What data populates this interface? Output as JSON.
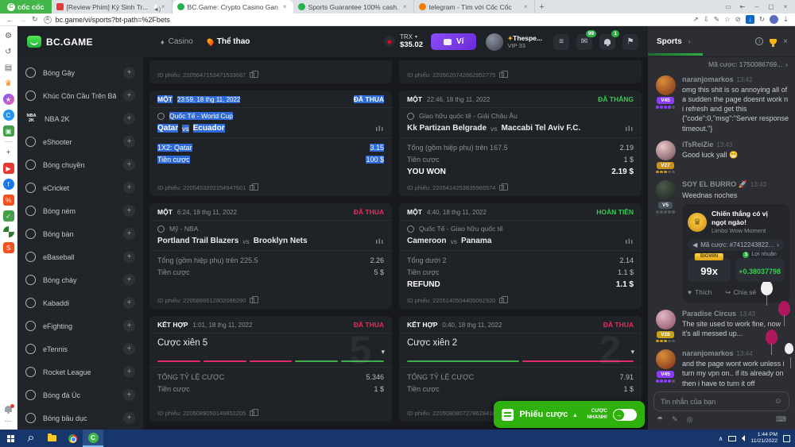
{
  "browser": {
    "brand": "cốc cốc",
    "tabs": [
      {
        "title": "[Review Phim] Ký Sinh Tr...",
        "favicon": "youtube",
        "audio": true,
        "active": false
      },
      {
        "title": "BC.Game: Crypto Casino Gan...",
        "favicon": "bcgame",
        "audio": false,
        "active": true
      },
      {
        "title": "Sports Guarantee 100% cash...",
        "favicon": "bcgame",
        "audio": false,
        "active": false
      },
      {
        "title": "telegram - Tìm với Cốc Cốc",
        "favicon": "coccoc",
        "audio": false,
        "active": false
      }
    ],
    "url": "bc.game/vi/sports?bt-path=%2Fbets"
  },
  "header": {
    "logo": "BC.GAME",
    "casino": "Casino",
    "sports": "Thể thao",
    "currency": "TRX",
    "balance": "$35.02",
    "wallet": "Ví",
    "username": "Thespe...",
    "vip": "VIP 33",
    "mail_badge": "99",
    "bell_badge": "1"
  },
  "strip": {
    "icons": [
      {
        "name": "settings-icon",
        "type": "glyph",
        "glyph": "⚙",
        "fg": "#5f6368"
      },
      {
        "name": "history-icon",
        "type": "glyph",
        "glyph": "↺",
        "fg": "#5f6368"
      },
      {
        "name": "reading-list-icon",
        "type": "glyph",
        "glyph": "▤",
        "fg": "#5f6368"
      },
      {
        "name": "crown-rewards-icon",
        "type": "glyph",
        "glyph": "♛",
        "fg": "#f57c00"
      },
      {
        "name": "messenger-icon",
        "type": "circle",
        "bg": "linear-gradient(135deg,#6a5cff,#ff5ca8)",
        "glyph": "★",
        "fg": "#ffffff"
      },
      {
        "name": "coccoc-news-icon",
        "type": "circle",
        "bg": "#2196f3",
        "glyph": "C",
        "fg": "#ffffff"
      },
      {
        "name": "gamepad-icon",
        "type": "tile",
        "bg": "#43a047",
        "glyph": "▣",
        "fg": "#ffffff"
      },
      {
        "name": "strip-divider",
        "type": "divider"
      },
      {
        "name": "add-shortcut-icon",
        "type": "glyph",
        "glyph": "+",
        "fg": "#5f6368"
      },
      {
        "name": "youtube-icon",
        "type": "tile",
        "bg": "#e53935",
        "glyph": "▶",
        "fg": "#ffffff"
      },
      {
        "name": "facebook-icon",
        "type": "circle",
        "bg": "#1877f2",
        "glyph": "f",
        "fg": "#ffffff"
      },
      {
        "name": "sale-icon",
        "type": "tile",
        "bg": "#f4511e",
        "glyph": "%",
        "fg": "#ffffff"
      },
      {
        "name": "shield-icon",
        "type": "tile",
        "bg": "#43a047",
        "glyph": "✓",
        "fg": "#ffffff"
      },
      {
        "name": "sports-ball-icon",
        "type": "circle",
        "bg": "conic-gradient(#ffffff 0 25%,#2e7d32 0 50%,#ffffff 0 75%,#2e7d32 0)",
        "glyph": "",
        "fg": "#ffffff"
      },
      {
        "name": "shopee-icon",
        "type": "tile",
        "bg": "#f4511e",
        "glyph": "S",
        "fg": "#ffffff"
      }
    ]
  },
  "sidebar": {
    "items": [
      {
        "label": "Bóng Gậy",
        "icon": "cricket-icon"
      },
      {
        "label": "Khúc Côn Cầu Trên Băng",
        "icon": "ice-hockey-icon"
      },
      {
        "label": "NBA 2K",
        "icon": "nba2k-icon"
      },
      {
        "label": "eShooter",
        "icon": "eshooter-icon"
      },
      {
        "label": "Bóng chuyền",
        "icon": "volleyball-icon"
      },
      {
        "label": "eCricket",
        "icon": "ecricket-icon"
      },
      {
        "label": "Bóng ném",
        "icon": "handball-icon"
      },
      {
        "label": "Bóng bàn",
        "icon": "table-tennis-icon"
      },
      {
        "label": "eBaseball",
        "icon": "ebaseball-icon"
      },
      {
        "label": "Bóng chày",
        "icon": "baseball-icon"
      },
      {
        "label": "Kabaddi",
        "icon": "kabaddi-icon"
      },
      {
        "label": "eFighting",
        "icon": "efighting-icon"
      },
      {
        "label": "eTennis",
        "icon": "etennis-icon"
      },
      {
        "label": "Rocket League",
        "icon": "rocket-league-icon"
      },
      {
        "label": "Bóng đá Úc",
        "icon": "aussie-rules-icon"
      },
      {
        "label": "Bóng bầu dục",
        "icon": "rugby-icon"
      }
    ]
  },
  "bets": {
    "partial": [
      {
        "id": "ID phiếu: 2205647153471533687"
      },
      {
        "id": "ID phiếu: 2205620742862952775"
      }
    ],
    "cards": [
      {
        "type": "MỘT",
        "time": "23:59, 18 thg 11, 2022",
        "status": "ĐÃ THUA",
        "result_type": "lose",
        "league": "Quốc Tế - World Cup",
        "team1": "Qatar",
        "team2": "Ecuador",
        "rows": [
          [
            "1X2: Qatar",
            "3.15"
          ],
          [
            "Tiền cược",
            "100 $"
          ]
        ],
        "id": "ID phiếu: 2205453202154947601",
        "selected": true
      },
      {
        "type": "MỘT",
        "time": "22:46, 18 thg 11, 2022",
        "status": "ĐÃ THẮNG",
        "result_type": "win",
        "league": "Giao hữu quốc tế - Giải Châu Âu",
        "team1": "Kk Partizan Belgrade",
        "team2": "Maccabi Tel Aviv F.C.",
        "rows": [
          [
            "Tổng (gồm hiệp phụ) trên 167.5",
            "2.19"
          ],
          [
            "Tiền cược",
            "1 $"
          ]
        ],
        "result": [
          "YOU WON",
          "2.19 $"
        ],
        "id": "ID phiếu: 2205414253835960574",
        "selected": false
      },
      {
        "type": "MỘT",
        "time": "6:24, 18 thg 11, 2022",
        "status": "ĐÃ THUA",
        "result_type": "lose",
        "league": "Mỹ - NBA",
        "team1": "Portland Trail Blazers",
        "team2": "Brooklyn Nets",
        "rows": [
          [
            "Tổng (gồm hiệp phụ) trên 225.5",
            "2.26"
          ],
          [
            "Tiền cược",
            "5 $"
          ]
        ],
        "id": "ID phiếu: 2205866512802086290",
        "selected": false
      },
      {
        "type": "MỘT",
        "time": "4:40, 18 thg 11, 2022",
        "status": "HOÀN TIỀN",
        "result_type": "refund",
        "league": "Quốc Tế - Giao hữu quốc tế",
        "team1": "Cameroon",
        "team2": "Panama",
        "rows": [
          [
            "Tổng dưới 2",
            "2.14"
          ],
          [
            "Tiền cược",
            "1.1 $"
          ]
        ],
        "result": [
          "REFUND",
          "1.1 $"
        ],
        "id": "ID phiếu: 2205140504405062920",
        "selected": false
      },
      {
        "type": "KẾT HỢP",
        "time": "1:01, 18 thg 11, 2022",
        "status": "ĐÃ THUA",
        "result_type": "lose",
        "parlay": {
          "title": "Cược xiên 5",
          "count": "5",
          "legs": [
            "lose",
            "lose",
            "lose",
            "win",
            "win"
          ]
        },
        "rows": [
          [
            "TỔNG TỶ LỆ CƯỢC",
            "5.346"
          ],
          [
            "Tiền cược",
            "1 $"
          ]
        ],
        "id": "ID phiếu: 2205089050149852205",
        "selected": false
      },
      {
        "type": "KẾT HỢP",
        "time": "0:40, 18 thg 11, 2022",
        "status": "ĐÃ THUA",
        "result_type": "lose",
        "parlay": {
          "title": "Cược xiên 2",
          "count": "2",
          "legs": [
            "win",
            "lose"
          ]
        },
        "rows": [
          [
            "TỔNG TỶ LỆ CƯỢC",
            "7.91"
          ],
          [
            "Tiền cược",
            "1 $"
          ]
        ],
        "id": "ID phiếu: 2205080807278628418",
        "selected": false
      }
    ]
  },
  "betslip": {
    "label": "Phiếu cược",
    "quick1": "CƯỢC",
    "quick2": "NHANH!"
  },
  "chat": {
    "tab": "Sports",
    "pinned": "Mã cược: 1750086769...",
    "input_placeholder": "Tin nhắn của bạn",
    "messages": [
      {
        "user": "naranjomarkos",
        "time": "13:42",
        "vip": "V45",
        "vip_color": "#8b3dff",
        "avatar": [
          "#d98f3a",
          "#7a2c18"
        ],
        "pips": 4,
        "text": "omg this shit is so annoying all of a sudden the page doesnt work n i refresh and get this {\"code\":0,\"msg\":\"Server response timeout.\"}"
      },
      {
        "user": "iTsReiZie",
        "time": "13:43",
        "vip": "V27",
        "vip_color": "#c9921c",
        "avatar": [
          "#e8c8c8",
          "#6b4a52"
        ],
        "pips": 3,
        "text": "Good luck yall 😁"
      },
      {
        "user": "SOY EL BURRO 🚀",
        "time": "13:43",
        "vip": "V5",
        "vip_color": "#46525c",
        "avatar": [
          "#4a5a4a",
          "#1c2420"
        ],
        "pips": 1,
        "text": "Weednas noches",
        "win_card": {
          "title": "Chiến thắng có vị ngọt ngào!",
          "subtitle": "Limbo Wow Moment",
          "bet_id": "Mã cược: #7412243822...",
          "badge": "BIGWIN",
          "profit_label": "Lợi nhuận",
          "multiplier": "99x",
          "profit": "+0.38037798",
          "like": "Thích",
          "share": "Chia sẻ"
        }
      },
      {
        "user": "Paradise Circus",
        "time": "13:43",
        "vip": "V28",
        "vip_color": "#c9a21c",
        "avatar": [
          "#e3b8c8",
          "#8a4a5a"
        ],
        "pips": 3,
        "text": "The site used to work fine, now it's all messed up..."
      },
      {
        "user": "naranjomarkos",
        "time": "13:44",
        "vip": "V45",
        "vip_color": "#8b3dff",
        "avatar": [
          "#d98f3a",
          "#7a2c18"
        ],
        "pips": 4,
        "text": "and the page wont work unless i turn my vpn on.. if its already on then i have to turn it off"
      }
    ]
  },
  "taskbar": {
    "time": "1:44 PM",
    "date": "11/21/2022"
  },
  "colors": {
    "selection_blue": "#2e6bd8",
    "lose_red": "#f0295d",
    "win_green": "#33cf4e",
    "betslip_green": "#2eb00d",
    "wallet_purple": "#7d41f2",
    "brand_green": "#43b649",
    "taskbar_blue": "#17366b"
  }
}
